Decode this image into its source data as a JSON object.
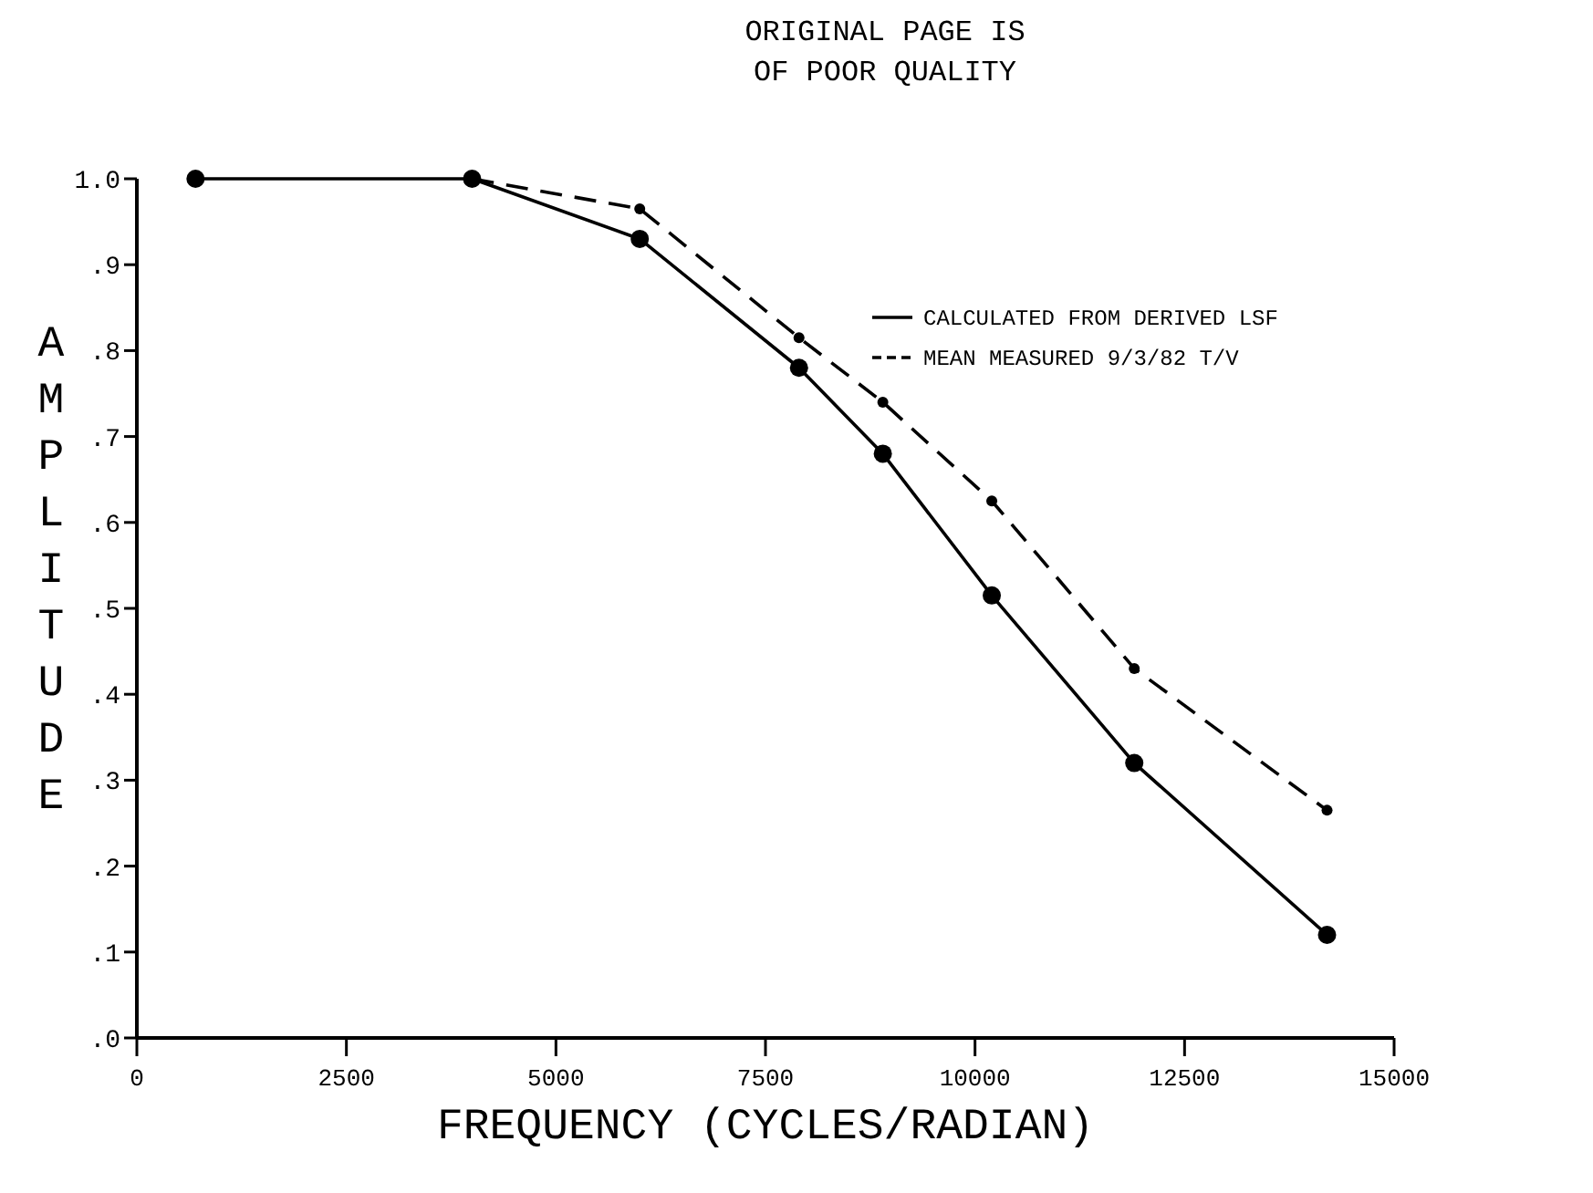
{
  "chart_data": {
    "type": "line",
    "xlabel": "FREQUENCY (CYCLES/RADIAN)",
    "ylabel": "AMPLITUDE",
    "annotations": [
      "ORIGINAL PAGE IS\nOF POOR QUALITY"
    ],
    "xlim": [
      0,
      15000
    ],
    "xticks": [
      0,
      2500,
      5000,
      7500,
      10000,
      12500,
      15000
    ],
    "ylim": [
      0,
      1
    ],
    "yticks": [
      {
        "value": 0,
        "label": ".0"
      },
      {
        "value": 0.1,
        "label": ".1"
      },
      {
        "value": 0.2,
        "label": ".2"
      },
      {
        "value": 0.3,
        "label": ".3"
      },
      {
        "value": 0.4,
        "label": ".4"
      },
      {
        "value": 0.5,
        "label": ".5"
      },
      {
        "value": 0.6,
        "label": ".6"
      },
      {
        "value": 0.7,
        "label": ".7"
      },
      {
        "value": 0.8,
        "label": ".8"
      },
      {
        "value": 0.9,
        "label": ".9"
      },
      {
        "value": 1,
        "label": "1.0"
      }
    ],
    "grid": false,
    "legend": "top right",
    "marker": "circle",
    "series": [
      {
        "name": "CALCULATED FROM DERIVED LSF",
        "color": "#000000",
        "line_style": "solid",
        "x": [
          700,
          4000,
          6000,
          7900,
          8900,
          10200,
          11900,
          14200
        ],
        "values": [
          1,
          1,
          0.93,
          0.78,
          0.68,
          0.515,
          0.32,
          0.12
        ]
      },
      {
        "name": "MEAN MEASURED 9/3/82 T/V",
        "color": "#000000",
        "line_style": "dashed",
        "x": [
          4000,
          6000,
          7900,
          8900,
          10200,
          11900,
          14200
        ],
        "values": [
          1,
          0.965,
          0.815,
          0.74,
          0.625,
          0.43,
          0.265
        ]
      }
    ]
  }
}
